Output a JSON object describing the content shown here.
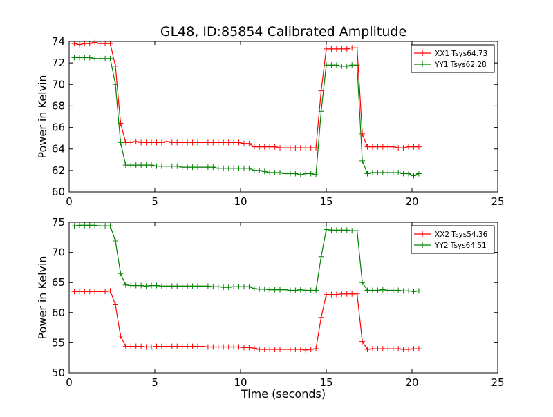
{
  "chart_data": [
    {
      "type": "line",
      "title": "GL48, ID:85854 Calibrated Amplitude",
      "xlabel": "",
      "ylabel": "Power in Kelvin",
      "xlim": [
        0,
        25
      ],
      "ylim": [
        60,
        74
      ],
      "xticks": [
        0,
        5,
        10,
        15,
        20,
        25
      ],
      "yticks": [
        60,
        62,
        64,
        66,
        68,
        70,
        72,
        74
      ],
      "legend_position": "top-right",
      "grid": false,
      "marker": "+",
      "series": [
        {
          "name": "XX1 Tsys64.73",
          "color": "#ff0000",
          "x": [
            0.3,
            0.6,
            0.9,
            1.2,
            1.5,
            1.8,
            2.1,
            2.4,
            2.7,
            3.0,
            3.3,
            3.6,
            3.9,
            4.2,
            4.5,
            4.8,
            5.1,
            5.4,
            5.7,
            6.0,
            6.3,
            6.6,
            6.9,
            7.2,
            7.5,
            7.8,
            8.1,
            8.4,
            8.7,
            9.0,
            9.3,
            9.6,
            9.9,
            10.2,
            10.5,
            10.8,
            11.1,
            11.4,
            11.7,
            12.0,
            12.3,
            12.6,
            12.9,
            13.2,
            13.5,
            13.8,
            14.1,
            14.4,
            14.7,
            15.0,
            15.3,
            15.6,
            15.9,
            16.2,
            16.5,
            16.8,
            17.1,
            17.4,
            17.7,
            18.0,
            18.3,
            18.6,
            18.9,
            19.2,
            19.5,
            19.8,
            20.1,
            20.4
          ],
          "y": [
            73.8,
            73.7,
            73.8,
            73.8,
            73.9,
            73.8,
            73.8,
            73.8,
            71.7,
            66.4,
            64.6,
            64.6,
            64.7,
            64.6,
            64.6,
            64.6,
            64.6,
            64.6,
            64.7,
            64.6,
            64.6,
            64.6,
            64.6,
            64.6,
            64.6,
            64.6,
            64.6,
            64.6,
            64.6,
            64.6,
            64.6,
            64.6,
            64.6,
            64.5,
            64.5,
            64.2,
            64.2,
            64.2,
            64.2,
            64.2,
            64.1,
            64.1,
            64.1,
            64.1,
            64.1,
            64.1,
            64.1,
            64.1,
            69.4,
            73.3,
            73.3,
            73.3,
            73.3,
            73.3,
            73.4,
            73.4,
            65.4,
            64.2,
            64.2,
            64.2,
            64.2,
            64.2,
            64.2,
            64.1,
            64.1,
            64.2,
            64.2,
            64.2
          ]
        },
        {
          "name": "YY1 Tsys62.28",
          "color": "#008000",
          "x": [
            0.3,
            0.6,
            0.9,
            1.2,
            1.5,
            1.8,
            2.1,
            2.4,
            2.7,
            3.0,
            3.3,
            3.6,
            3.9,
            4.2,
            4.5,
            4.8,
            5.1,
            5.4,
            5.7,
            6.0,
            6.3,
            6.6,
            6.9,
            7.2,
            7.5,
            7.8,
            8.1,
            8.4,
            8.7,
            9.0,
            9.3,
            9.6,
            9.9,
            10.2,
            10.5,
            10.8,
            11.1,
            11.4,
            11.7,
            12.0,
            12.3,
            12.6,
            12.9,
            13.2,
            13.5,
            13.8,
            14.1,
            14.4,
            14.7,
            15.0,
            15.3,
            15.6,
            15.9,
            16.2,
            16.5,
            16.8,
            17.1,
            17.4,
            17.7,
            18.0,
            18.3,
            18.6,
            18.9,
            19.2,
            19.5,
            19.8,
            20.1,
            20.4
          ],
          "y": [
            72.5,
            72.5,
            72.5,
            72.5,
            72.4,
            72.4,
            72.4,
            72.4,
            70.0,
            64.6,
            62.5,
            62.5,
            62.5,
            62.5,
            62.5,
            62.5,
            62.4,
            62.4,
            62.4,
            62.4,
            62.4,
            62.3,
            62.3,
            62.3,
            62.3,
            62.3,
            62.3,
            62.3,
            62.2,
            62.2,
            62.2,
            62.2,
            62.2,
            62.2,
            62.2,
            62.0,
            62.0,
            61.9,
            61.8,
            61.8,
            61.8,
            61.7,
            61.7,
            61.7,
            61.6,
            61.7,
            61.7,
            61.6,
            67.5,
            71.8,
            71.8,
            71.8,
            71.7,
            71.7,
            71.8,
            71.8,
            62.9,
            61.7,
            61.8,
            61.8,
            61.8,
            61.8,
            61.8,
            61.8,
            61.7,
            61.7,
            61.5,
            61.7
          ]
        }
      ]
    },
    {
      "type": "line",
      "title": "",
      "xlabel": "Time (seconds)",
      "ylabel": "Power in Kelvin",
      "xlim": [
        0,
        25
      ],
      "ylim": [
        50,
        75
      ],
      "xticks": [
        0,
        5,
        10,
        15,
        20,
        25
      ],
      "yticks": [
        50,
        55,
        60,
        65,
        70,
        75
      ],
      "legend_position": "top-right",
      "grid": false,
      "marker": "+",
      "series": [
        {
          "name": "XX2 Tsys54.36",
          "color": "#ff0000",
          "x": [
            0.3,
            0.6,
            0.9,
            1.2,
            1.5,
            1.8,
            2.1,
            2.4,
            2.7,
            3.0,
            3.3,
            3.6,
            3.9,
            4.2,
            4.5,
            4.8,
            5.1,
            5.4,
            5.7,
            6.0,
            6.3,
            6.6,
            6.9,
            7.2,
            7.5,
            7.8,
            8.1,
            8.4,
            8.7,
            9.0,
            9.3,
            9.6,
            9.9,
            10.2,
            10.5,
            10.8,
            11.1,
            11.4,
            11.7,
            12.0,
            12.3,
            12.6,
            12.9,
            13.2,
            13.5,
            13.8,
            14.1,
            14.4,
            14.7,
            15.0,
            15.3,
            15.6,
            15.9,
            16.2,
            16.5,
            16.8,
            17.1,
            17.4,
            17.7,
            18.0,
            18.3,
            18.6,
            18.9,
            19.2,
            19.5,
            19.8,
            20.1,
            20.4
          ],
          "y": [
            63.5,
            63.5,
            63.5,
            63.5,
            63.5,
            63.5,
            63.5,
            63.6,
            61.3,
            56.1,
            54.4,
            54.4,
            54.4,
            54.4,
            54.3,
            54.3,
            54.4,
            54.4,
            54.4,
            54.4,
            54.4,
            54.4,
            54.4,
            54.4,
            54.4,
            54.4,
            54.3,
            54.3,
            54.3,
            54.3,
            54.3,
            54.3,
            54.3,
            54.2,
            54.2,
            54.1,
            53.9,
            53.9,
            53.9,
            53.9,
            53.9,
            53.9,
            53.9,
            53.9,
            53.9,
            53.8,
            53.9,
            54.0,
            59.2,
            63.0,
            63.0,
            63.0,
            63.1,
            63.1,
            63.1,
            63.1,
            55.2,
            53.9,
            54.0,
            54.0,
            54.0,
            54.0,
            54.0,
            54.0,
            53.9,
            53.9,
            54.0,
            54.0
          ]
        },
        {
          "name": "YY2 Tsys64.51",
          "color": "#008000",
          "x": [
            0.3,
            0.6,
            0.9,
            1.2,
            1.5,
            1.8,
            2.1,
            2.4,
            2.7,
            3.0,
            3.3,
            3.6,
            3.9,
            4.2,
            4.5,
            4.8,
            5.1,
            5.4,
            5.7,
            6.0,
            6.3,
            6.6,
            6.9,
            7.2,
            7.5,
            7.8,
            8.1,
            8.4,
            8.7,
            9.0,
            9.3,
            9.6,
            9.9,
            10.2,
            10.5,
            10.8,
            11.1,
            11.4,
            11.7,
            12.0,
            12.3,
            12.6,
            12.9,
            13.2,
            13.5,
            13.8,
            14.1,
            14.4,
            14.7,
            15.0,
            15.3,
            15.6,
            15.9,
            16.2,
            16.5,
            16.8,
            17.1,
            17.4,
            17.7,
            18.0,
            18.3,
            18.6,
            18.9,
            19.2,
            19.5,
            19.8,
            20.1,
            20.4
          ],
          "y": [
            74.4,
            74.5,
            74.5,
            74.5,
            74.5,
            74.4,
            74.4,
            74.4,
            71.9,
            66.5,
            64.6,
            64.5,
            64.5,
            64.5,
            64.4,
            64.5,
            64.5,
            64.4,
            64.4,
            64.4,
            64.4,
            64.4,
            64.4,
            64.4,
            64.4,
            64.4,
            64.4,
            64.3,
            64.3,
            64.2,
            64.2,
            64.3,
            64.3,
            64.3,
            64.3,
            64.0,
            63.9,
            63.9,
            63.8,
            63.8,
            63.8,
            63.8,
            63.7,
            63.7,
            63.8,
            63.7,
            63.7,
            63.7,
            69.3,
            73.8,
            73.7,
            73.7,
            73.7,
            73.7,
            73.6,
            73.6,
            65.0,
            63.7,
            63.7,
            63.7,
            63.8,
            63.7,
            63.7,
            63.7,
            63.6,
            63.6,
            63.5,
            63.6
          ]
        }
      ]
    }
  ]
}
